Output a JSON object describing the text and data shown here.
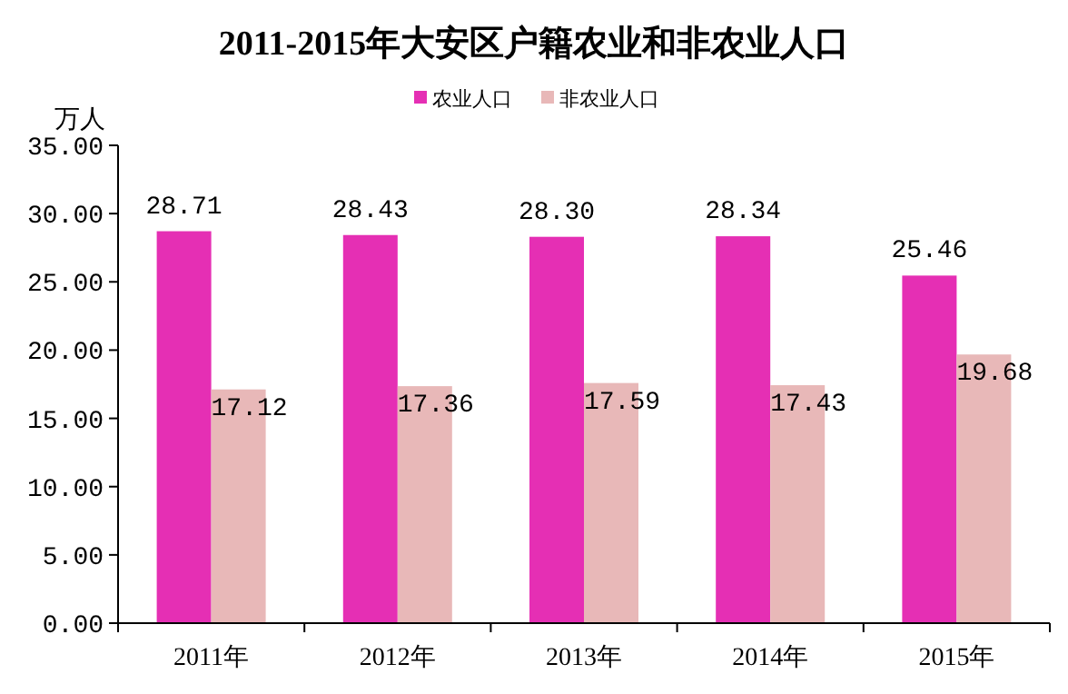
{
  "chart_data": {
    "type": "bar",
    "title": "2011-2015年大安区户籍农业和非农业人口",
    "ylabel": "万人",
    "categories": [
      "2011年",
      "2012年",
      "2013年",
      "2014年",
      "2015年"
    ],
    "series": [
      {
        "name": "农业人口",
        "color": "#e52fb4",
        "values": [
          28.71,
          28.43,
          28.3,
          28.34,
          25.46
        ],
        "value_labels": [
          "28.71",
          "28.43",
          "28.30",
          "28.34",
          "25.46"
        ]
      },
      {
        "name": "非农业人口",
        "color": "#e8b8b8",
        "values": [
          17.12,
          17.36,
          17.59,
          17.43,
          19.68
        ],
        "value_labels": [
          "17.12",
          "17.36",
          "17.59",
          "17.43",
          "19.68"
        ]
      }
    ],
    "ylim": [
      0,
      35
    ],
    "yticks": [
      {
        "value": 0,
        "label": "0.00"
      },
      {
        "value": 5,
        "label": "5.00"
      },
      {
        "value": 10,
        "label": "10.00"
      },
      {
        "value": 15,
        "label": "15.00"
      },
      {
        "value": 20,
        "label": "20.00"
      },
      {
        "value": 25,
        "label": "25.00"
      },
      {
        "value": 30,
        "label": "30.00"
      },
      {
        "value": 35,
        "label": "35.00"
      }
    ],
    "grid": false,
    "legend": "top"
  }
}
